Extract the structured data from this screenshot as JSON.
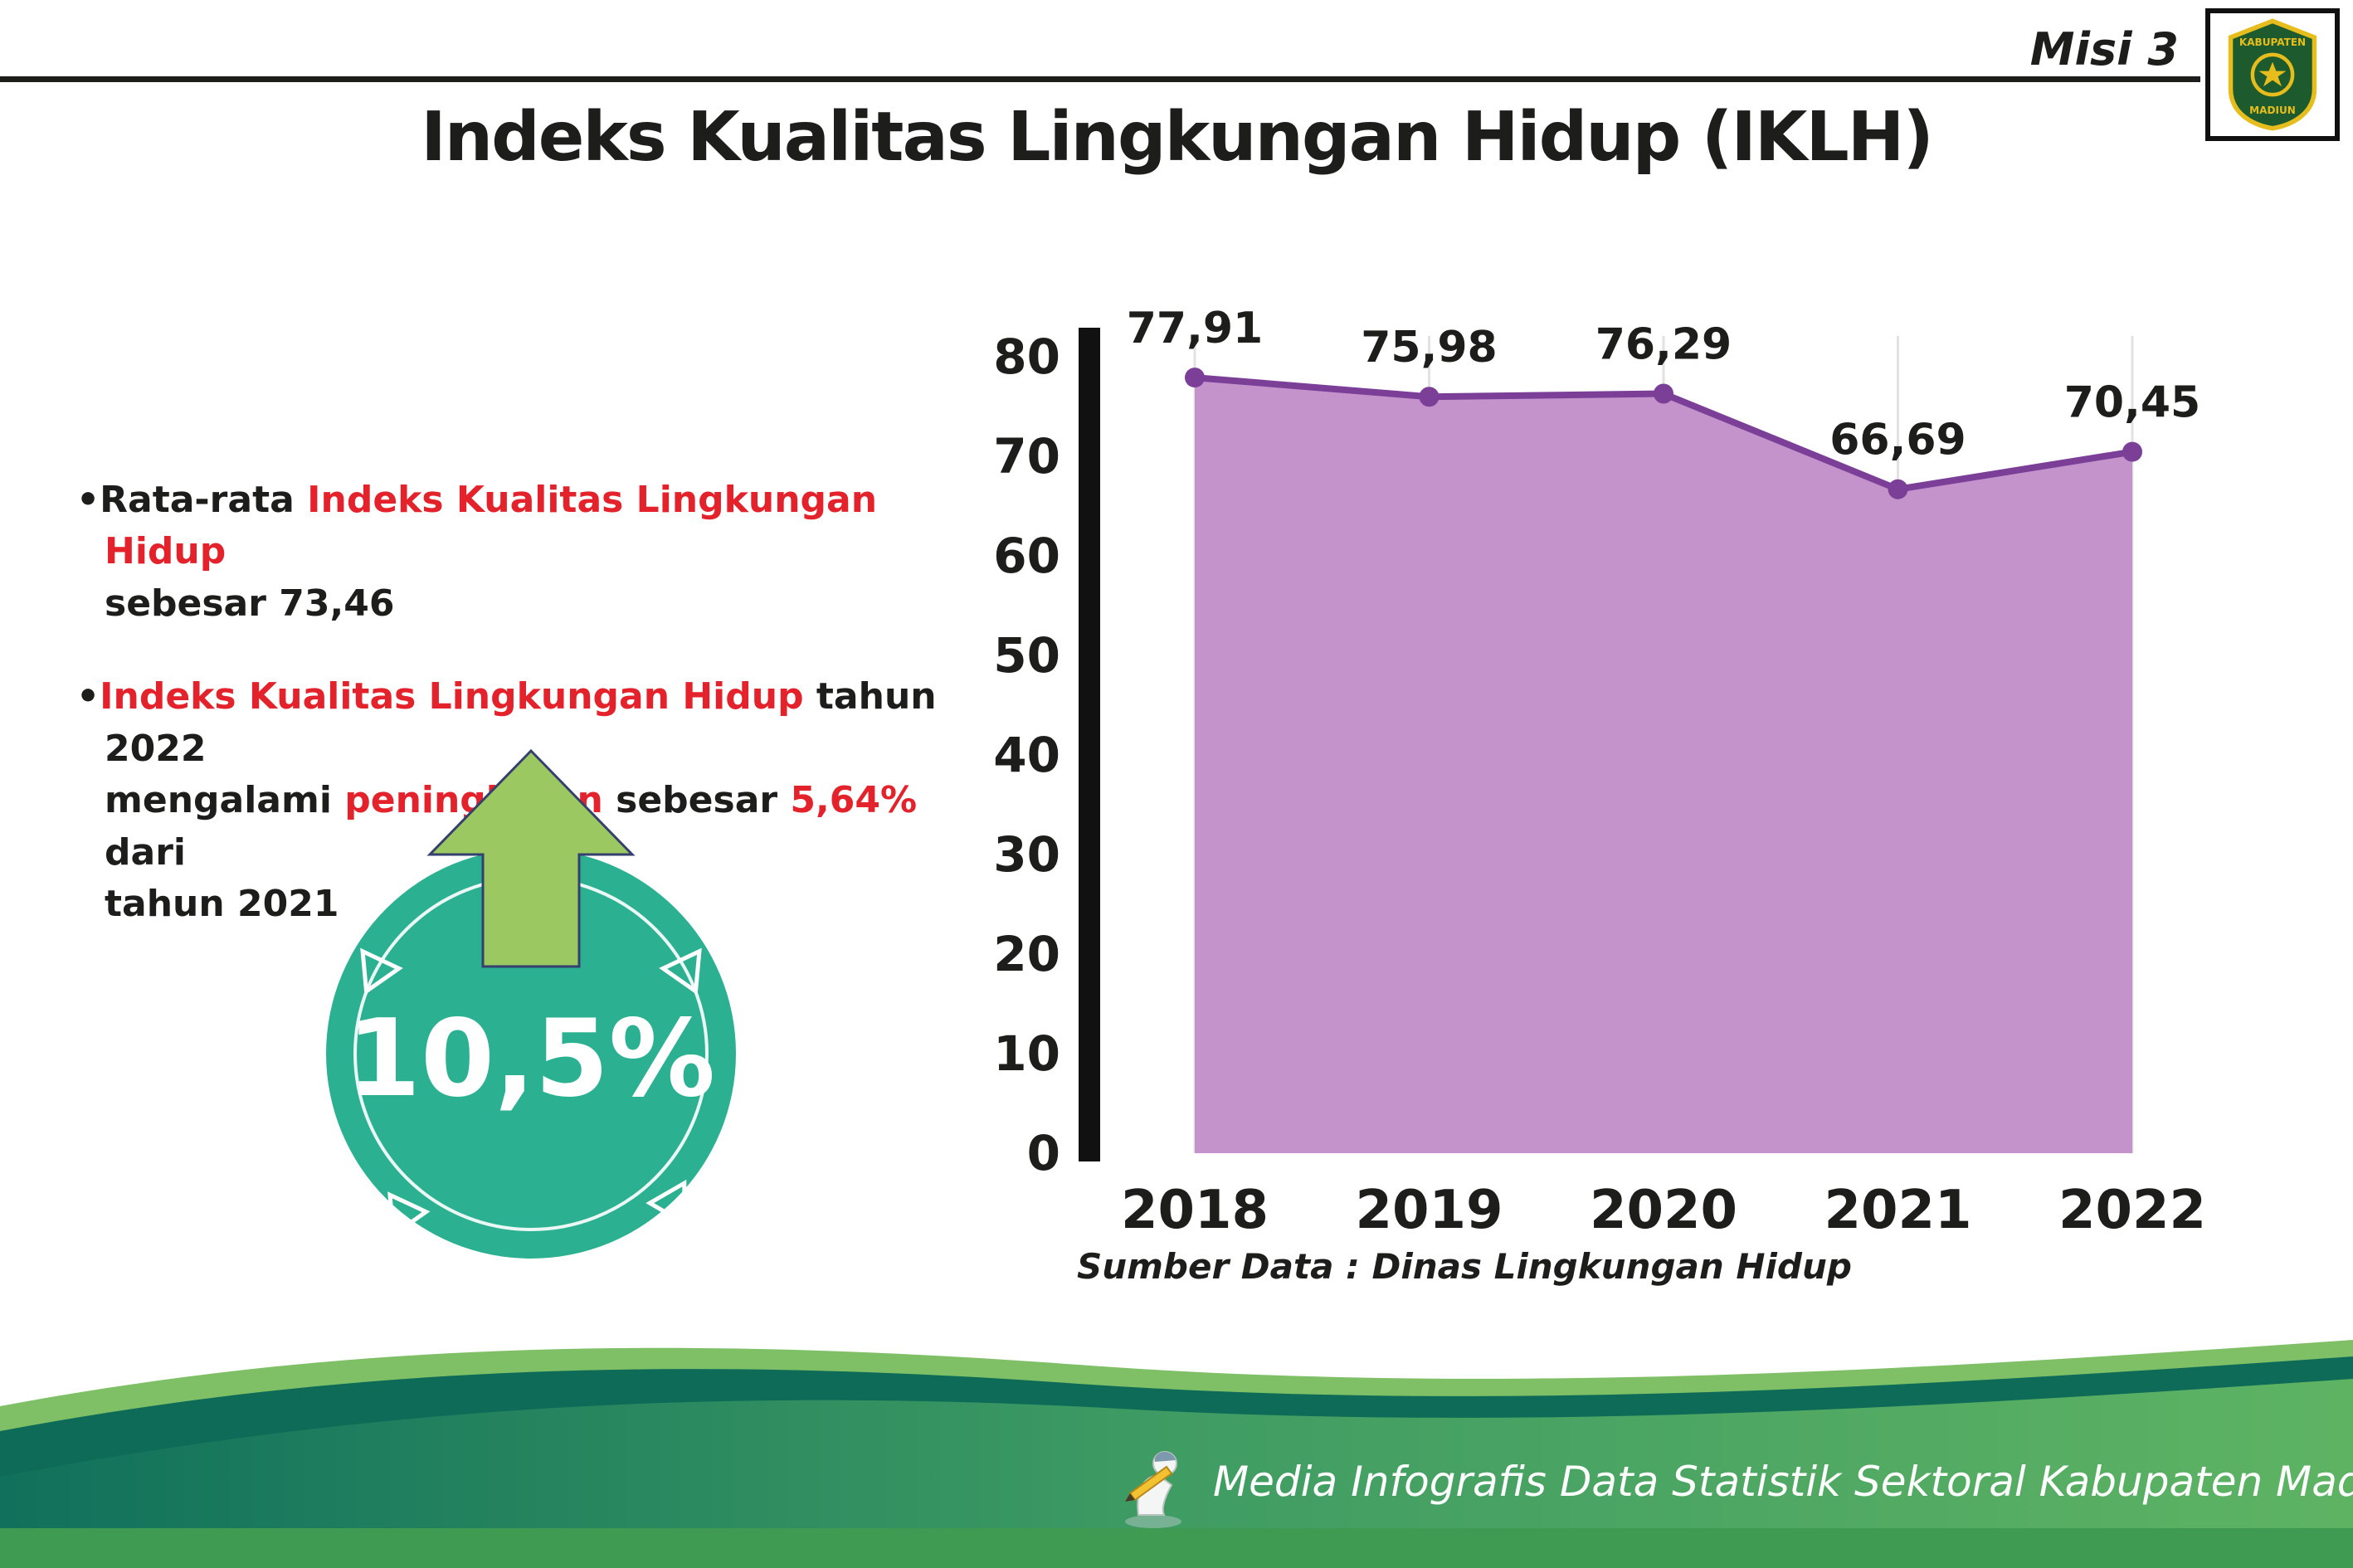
{
  "header": {
    "misi_label": "Misi 3",
    "title": "Indeks Kualitas Lingkungan Hidup (IKLH)"
  },
  "logo": {
    "top_text": "KABUPATEN",
    "bottom_text": "MADIUN"
  },
  "bullets": {
    "bullet_char": "•",
    "b1": {
      "black1": "Rata-rata ",
      "red1": "Indeks Kualitas Lingkungan Hidup",
      "black2": "sebesar 73,46"
    },
    "b2": {
      "red1": "Indeks Kualitas Lingkungan Hidup",
      "black1": " tahun 2022",
      "black2": "mengalami ",
      "red2": "peningkatan",
      "black3": " sebesar ",
      "red3": "5,64%",
      "black4": " dari",
      "black5": "tahun 2021"
    }
  },
  "badge": {
    "value": "10,5%"
  },
  "chart_data": {
    "type": "area",
    "title": "",
    "xlabel": "",
    "ylabel": "",
    "categories": [
      "2018",
      "2019",
      "2020",
      "2021",
      "2022"
    ],
    "values": [
      77.91,
      75.98,
      76.29,
      66.69,
      70.45
    ],
    "value_labels": [
      "77,91",
      "75,98",
      "76,29",
      "66,69",
      "70,45"
    ],
    "ylim": [
      0,
      80
    ],
    "yticks": [
      0,
      10,
      20,
      30,
      40,
      50,
      60,
      70,
      80
    ],
    "grid": "faint-vertical",
    "legend": "none",
    "fill_color": "#c493cb",
    "line_color": "#7b3f98"
  },
  "source_note": "Sumber Data : Dinas Lingkungan Hidup",
  "footer": {
    "text": "Media Infografis Data Statistik Sektoral Kabupaten Madiun |"
  },
  "colors": {
    "ink": "#1d1d1b",
    "accent_red": "#e3222b",
    "badge_teal": "#2bb191",
    "arrow_green": "#9cc862",
    "chart_fill": "#c493cb",
    "chart_line": "#7b3f98",
    "footer_dark_teal": "#0d6b57",
    "footer_light_green": "#7fbf66",
    "footer_main_green": "#3f9c63",
    "footer_strip": "#3f9b52"
  }
}
